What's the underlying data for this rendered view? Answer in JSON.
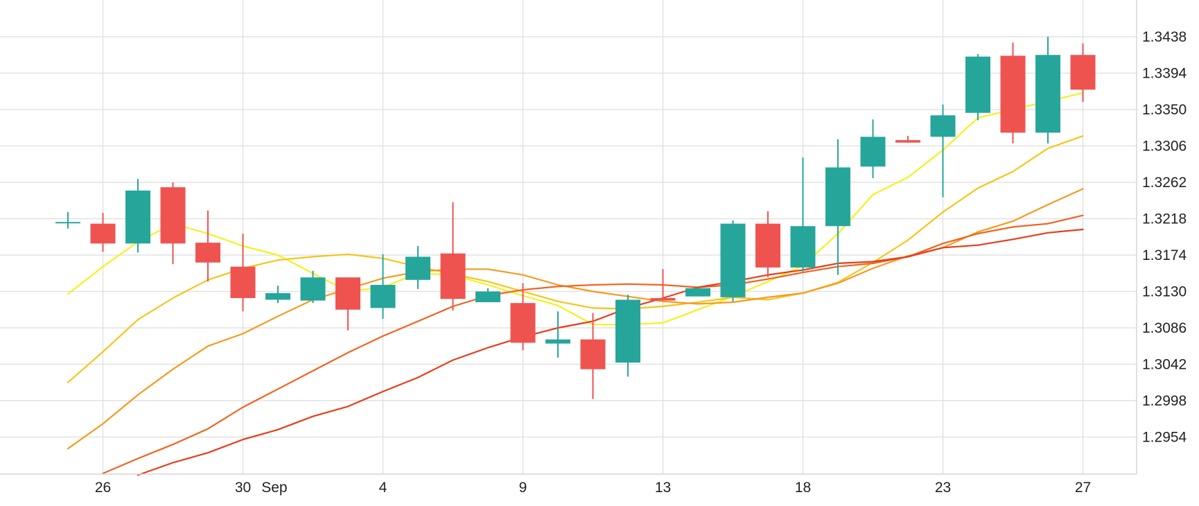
{
  "chart_data": {
    "type": "candlestick",
    "title": "",
    "xlabel": "",
    "ylabel": "",
    "ylim": [
      1.291,
      1.347
    ],
    "y_ticks": [
      "1.3438",
      "1.3394",
      "1.3350",
      "1.3306",
      "1.3262",
      "1.3218",
      "1.3174",
      "1.3130",
      "1.3086",
      "1.3042",
      "1.2998",
      "1.2954"
    ],
    "x_tick_labels": [
      {
        "label": "26",
        "index": 1
      },
      {
        "label": "30",
        "index": 5
      },
      {
        "label": "Sep",
        "index": 5.9
      },
      {
        "label": "4",
        "index": 9
      },
      {
        "label": "9",
        "index": 13
      },
      {
        "label": "13",
        "index": 17
      },
      {
        "label": "18",
        "index": 21
      },
      {
        "label": "23",
        "index": 25
      },
      {
        "label": "27",
        "index": 29
      }
    ],
    "up_color": "#26a69a",
    "down_color": "#ef5350",
    "grid": true,
    "candles": [
      {
        "o": 1.3214,
        "h": 1.3226,
        "l": 1.3206,
        "c": 1.3214
      },
      {
        "o": 1.3212,
        "h": 1.3225,
        "l": 1.3178,
        "c": 1.3188
      },
      {
        "o": 1.3188,
        "h": 1.3266,
        "l": 1.3177,
        "c": 1.3252
      },
      {
        "o": 1.3256,
        "h": 1.3262,
        "l": 1.3163,
        "c": 1.3188
      },
      {
        "o": 1.3189,
        "h": 1.3228,
        "l": 1.3142,
        "c": 1.3165
      },
      {
        "o": 1.316,
        "h": 1.32,
        "l": 1.3106,
        "c": 1.3122
      },
      {
        "o": 1.312,
        "h": 1.3137,
        "l": 1.3116,
        "c": 1.3128
      },
      {
        "o": 1.3119,
        "h": 1.3155,
        "l": 1.3116,
        "c": 1.3147
      },
      {
        "o": 1.3147,
        "h": 1.3147,
        "l": 1.3083,
        "c": 1.3108
      },
      {
        "o": 1.311,
        "h": 1.3175,
        "l": 1.3097,
        "c": 1.3138
      },
      {
        "o": 1.3144,
        "h": 1.3185,
        "l": 1.3133,
        "c": 1.3172
      },
      {
        "o": 1.3176,
        "h": 1.3238,
        "l": 1.3107,
        "c": 1.3121
      },
      {
        "o": 1.3117,
        "h": 1.3134,
        "l": 1.3117,
        "c": 1.313
      },
      {
        "o": 1.3116,
        "h": 1.314,
        "l": 1.3059,
        "c": 1.3068
      },
      {
        "o": 1.3067,
        "h": 1.3106,
        "l": 1.305,
        "c": 1.3072
      },
      {
        "o": 1.3072,
        "h": 1.3104,
        "l": 1.3,
        "c": 1.3036
      },
      {
        "o": 1.3044,
        "h": 1.3126,
        "l": 1.3027,
        "c": 1.312
      },
      {
        "o": 1.3122,
        "h": 1.3157,
        "l": 1.3119,
        "c": 1.3119
      },
      {
        "o": 1.3124,
        "h": 1.3135,
        "l": 1.3124,
        "c": 1.3134
      },
      {
        "o": 1.3123,
        "h": 1.3216,
        "l": 1.3118,
        "c": 1.3212
      },
      {
        "o": 1.3212,
        "h": 1.3227,
        "l": 1.3147,
        "c": 1.3159
      },
      {
        "o": 1.3159,
        "h": 1.3292,
        "l": 1.3154,
        "c": 1.3209
      },
      {
        "o": 1.3209,
        "h": 1.3314,
        "l": 1.315,
        "c": 1.328
      },
      {
        "o": 1.3281,
        "h": 1.3338,
        "l": 1.3267,
        "c": 1.3317
      },
      {
        "o": 1.3313,
        "h": 1.3318,
        "l": 1.331,
        "c": 1.331
      },
      {
        "o": 1.3317,
        "h": 1.3356,
        "l": 1.3244,
        "c": 1.3343
      },
      {
        "o": 1.3346,
        "h": 1.3417,
        "l": 1.3337,
        "c": 1.3414
      },
      {
        "o": 1.3415,
        "h": 1.3431,
        "l": 1.3309,
        "c": 1.3322
      },
      {
        "o": 1.3322,
        "h": 1.3438,
        "l": 1.3309,
        "c": 1.3416
      },
      {
        "o": 1.3416,
        "h": 1.343,
        "l": 1.3359,
        "c": 1.3374
      }
    ],
    "series": [
      {
        "color": "#f2f21e",
        "x": [
          0,
          1,
          2,
          3,
          4,
          5,
          6,
          7,
          8,
          9,
          10,
          11,
          12,
          13,
          14,
          15,
          16,
          17,
          18,
          19,
          20,
          21,
          22,
          23,
          24,
          25,
          26,
          27,
          28,
          29
        ],
        "values": [
          1.3127,
          1.316,
          1.319,
          1.3212,
          1.32,
          1.3185,
          1.3174,
          1.3152,
          1.313,
          1.3135,
          1.3152,
          1.315,
          1.3138,
          1.3125,
          1.3113,
          1.309,
          1.309,
          1.3092,
          1.3108,
          1.3124,
          1.3142,
          1.3161,
          1.32,
          1.3247,
          1.3268,
          1.3301,
          1.334,
          1.335,
          1.336,
          1.337
        ]
      },
      {
        "color": "#f5c518",
        "x": [
          0,
          1,
          2,
          3,
          4,
          5,
          6,
          7,
          8,
          9,
          10,
          11,
          12,
          13,
          14,
          15,
          16,
          17,
          18,
          19,
          20,
          21,
          22,
          23,
          24,
          25,
          26,
          27,
          28,
          29
        ],
        "values": [
          1.302,
          1.3057,
          1.3096,
          1.3122,
          1.3144,
          1.3158,
          1.3168,
          1.3172,
          1.3175,
          1.317,
          1.316,
          1.3151,
          1.3142,
          1.313,
          1.3118,
          1.311,
          1.3109,
          1.3112,
          1.3117,
          1.3123,
          1.312,
          1.3128,
          1.3141,
          1.3165,
          1.3192,
          1.3226,
          1.3255,
          1.3275,
          1.3303,
          1.3318
        ]
      },
      {
        "color": "#f59a1e",
        "x": [
          0,
          1,
          2,
          3,
          4,
          5,
          6,
          7,
          8,
          9,
          10,
          11,
          12,
          13,
          14,
          15,
          16,
          17,
          18,
          19,
          20,
          21,
          22,
          23,
          24,
          25,
          26,
          27,
          28,
          29
        ],
        "values": [
          1.294,
          1.297,
          1.3005,
          1.3036,
          1.3064,
          1.3079,
          1.31,
          1.312,
          1.3133,
          1.3146,
          1.3154,
          1.3157,
          1.3157,
          1.315,
          1.3138,
          1.313,
          1.3124,
          1.3118,
          1.3115,
          1.3117,
          1.3123,
          1.3128,
          1.314,
          1.3158,
          1.3173,
          1.3183,
          1.3202,
          1.3215,
          1.3235,
          1.3254
        ]
      },
      {
        "color": "#f2621e",
        "x": [
          1,
          2,
          3,
          4,
          5,
          6,
          7,
          8,
          9,
          10,
          11,
          12,
          13,
          14,
          15,
          16,
          17,
          18,
          19,
          20,
          21,
          22,
          23,
          24,
          25,
          26,
          27,
          28,
          29
        ],
        "values": [
          1.291,
          1.2928,
          1.2945,
          1.2964,
          1.299,
          1.3012,
          1.3034,
          1.3056,
          1.3076,
          1.3094,
          1.3112,
          1.3125,
          1.3132,
          1.3136,
          1.3138,
          1.3139,
          1.3138,
          1.3135,
          1.3138,
          1.3145,
          1.3153,
          1.316,
          1.3164,
          1.3172,
          1.3188,
          1.32,
          1.3208,
          1.3212,
          1.3222
        ]
      },
      {
        "color": "#e83c18",
        "x": [
          2,
          3,
          4,
          5,
          6,
          7,
          8,
          9,
          10,
          11,
          12,
          13,
          14,
          15,
          16,
          17,
          18,
          19,
          20,
          21,
          22,
          23,
          24,
          25,
          26,
          27,
          28,
          29
        ],
        "values": [
          1.2908,
          1.2923,
          1.2935,
          1.2951,
          1.2963,
          1.2979,
          1.2991,
          1.3009,
          1.3026,
          1.3047,
          1.3062,
          1.3075,
          1.3086,
          1.3094,
          1.311,
          1.3122,
          1.3135,
          1.3142,
          1.315,
          1.3156,
          1.3164,
          1.3166,
          1.3172,
          1.3183,
          1.3186,
          1.3193,
          1.3201,
          1.3205
        ]
      }
    ]
  }
}
